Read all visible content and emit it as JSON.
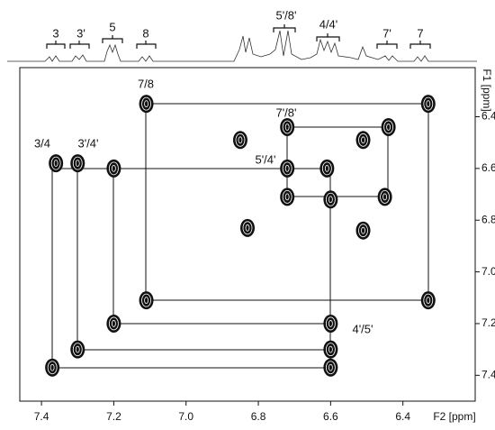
{
  "chart_data": {
    "type": "cosy",
    "x_label": "F2 [ppm]",
    "y_label": "F1 [ppm]",
    "xlim": [
      7.46,
      6.2
    ],
    "ylim": [
      6.21,
      7.5
    ],
    "xticks": [
      7.4,
      7.2,
      {
        "value": 7,
        "label": "7.0"
      },
      6.8,
      6.6,
      6.4
    ],
    "yticks": [
      6.4,
      6.6,
      6.8,
      {
        "value": 7,
        "label": "7.0"
      },
      7.2,
      7.4
    ],
    "x": [
      7.36,
      7.37,
      7.3,
      7.3,
      7.2,
      7.2,
      7.11,
      7.11,
      6.33,
      6.33,
      6.72,
      6.44,
      6.45,
      6.85,
      6.51,
      6.72,
      6.72,
      6.61,
      6.6,
      6.6,
      6.6,
      6.6,
      6.83,
      6.51
    ],
    "values": [
      6.58,
      7.37,
      6.58,
      7.3,
      6.6,
      7.2,
      6.35,
      7.11,
      6.35,
      7.11,
      6.44,
      6.44,
      6.71,
      6.49,
      6.49,
      6.6,
      6.71,
      6.6,
      6.72,
      7.2,
      7.3,
      7.37,
      6.83,
      6.84
    ],
    "color": "#111111",
    "peak_labels": [
      "3/4",
      "3'/4'",
      "7/8",
      "7'/8'",
      "5'/4'",
      "4'/5'"
    ],
    "top_labels": [
      "3",
      "3'",
      "5",
      "8",
      "5'/8'",
      "4/4'",
      "7'",
      "7"
    ]
  }
}
